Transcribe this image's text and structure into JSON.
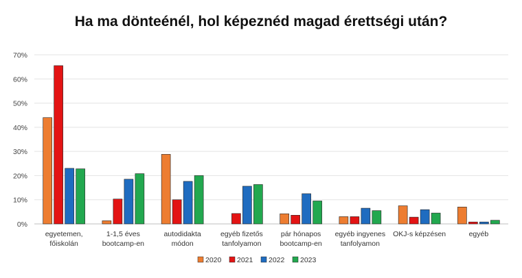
{
  "chart_data": {
    "type": "bar",
    "title": "Ha ma dönteénél, hol képeznéd magad érettségi után?",
    "xlabel": "",
    "ylabel": "",
    "ylim": [
      0,
      70
    ],
    "yticks": [
      "0%",
      "10%",
      "20%",
      "30%",
      "40%",
      "50%",
      "60%",
      "70%"
    ],
    "grid": true,
    "legend_position": "bottom",
    "categories": [
      [
        "egyetemen,",
        "főiskolán"
      ],
      [
        "1-1,5 éves",
        "bootcamp-en"
      ],
      [
        "autodidakta",
        "módon"
      ],
      [
        "egyéb fizetős",
        "tanfolyamon"
      ],
      [
        "pár hónapos",
        "bootcamp-en"
      ],
      [
        "egyéb ingyenes",
        "tanfolyamon"
      ],
      [
        "OKJ-s képzésen"
      ],
      [
        "egyéb"
      ]
    ],
    "series": [
      {
        "name": "2020",
        "color": "#ed7d31",
        "values": [
          44,
          1.3,
          28.8,
          0,
          4.2,
          3,
          7.5,
          7
        ]
      },
      {
        "name": "2021",
        "color": "#e31414",
        "values": [
          65.5,
          10.3,
          10,
          4.3,
          3.6,
          3,
          2.8,
          0.8
        ]
      },
      {
        "name": "2022",
        "color": "#1f6cc0",
        "values": [
          23,
          18.5,
          17.6,
          15.6,
          12.5,
          6.5,
          5.9,
          0.8
        ]
      },
      {
        "name": "2023",
        "color": "#22a84f",
        "values": [
          22.8,
          20.8,
          20,
          16.3,
          9.5,
          5.5,
          4.5,
          1.5
        ]
      }
    ]
  }
}
